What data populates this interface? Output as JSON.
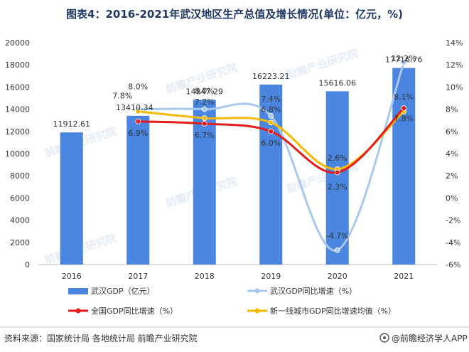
{
  "title": "图表4：2016-2021年武汉地区生产总值及增长情况(单位：亿元，%)",
  "source": "资料来源：国家统计局 各地统计局 前瞻产业研究院",
  "brand": "@前瞻经济学人APP",
  "watermark": "前瞻产业研究院",
  "colors": {
    "bar": "#4a86e0",
    "wuhan_line": "#a8c8ee",
    "national_line": "#e41b1b",
    "tier1_line": "#f7b900",
    "title": "#1f3864"
  },
  "chart_data": {
    "type": "bar",
    "categories": [
      "2016",
      "2017",
      "2018",
      "2019",
      "2020",
      "2021"
    ],
    "y_left": {
      "min": 0,
      "max": 20000,
      "step": 2000
    },
    "y_right": {
      "min": -6,
      "max": 14,
      "step": 2
    },
    "right_tick_labels": [
      "-6%",
      "-4%",
      "-2%",
      "0%",
      "2%",
      "4%",
      "6%",
      "8%",
      "10%",
      "12%",
      "14%"
    ],
    "bars": {
      "name": "武汉GDP（亿元）",
      "values": [
        11912.61,
        13410.34,
        14847.29,
        16223.21,
        15616.06,
        17716.76
      ],
      "labels": [
        "11912.61",
        "13410.34",
        "14847.29",
        "16223.21",
        "15616.06",
        "17716.76"
      ]
    },
    "lines": [
      {
        "key": "wuhan",
        "name": "武汉GDP同比增速（%）",
        "x_index": [
          0,
          1,
          2,
          3,
          4,
          5
        ],
        "values": [
          null,
          8.0,
          8.0,
          7.4,
          -4.7,
          12.2
        ],
        "labels": [
          "",
          "8.0%",
          "8.0%",
          "7.4%",
          "-4.7%",
          "12.2%"
        ]
      },
      {
        "key": "national",
        "name": "全国GDP同比增速（%）",
        "values": [
          null,
          6.9,
          6.7,
          6.0,
          2.3,
          8.1
        ],
        "labels": [
          "",
          "6.9%",
          "6.7%",
          "6.0%",
          "2.3%",
          "8.1%"
        ]
      },
      {
        "key": "tier1",
        "name": "新一线城市GDP同比增速均值（%）",
        "values": [
          null,
          7.8,
          7.2,
          6.8,
          2.6,
          7.8
        ],
        "labels": [
          "",
          "7.8%",
          "7.2%",
          "6.8%",
          "2.6%",
          "7.8%"
        ]
      }
    ]
  }
}
